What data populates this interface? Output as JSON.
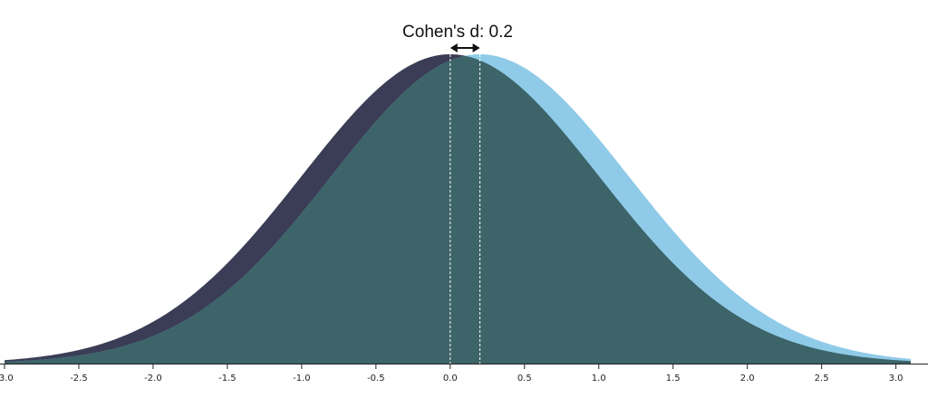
{
  "chart_data": {
    "type": "area",
    "title": "Cohen's d: 0.2",
    "effect_size": 0.2,
    "xlabel": "",
    "ylabel": "",
    "xlim": [
      -3.0,
      3.1
    ],
    "x_ticks": [
      -3.0,
      -2.5,
      -2.0,
      -1.5,
      -1.0,
      -0.5,
      0.0,
      0.5,
      1.0,
      1.5,
      2.0,
      2.5,
      3.0
    ],
    "x_tick_labels": [
      "-3.0",
      "-2.5",
      "-2.0",
      "-1.5",
      "-1.0",
      "-0.5",
      "0.0",
      "0.5",
      "1.0",
      "1.5",
      "2.0",
      "2.5",
      "3.0"
    ],
    "grid": false,
    "series": [
      {
        "mean": 0.0,
        "sd": 1.0,
        "color": "#3a3d55"
      },
      {
        "mean": 0.2,
        "sd": 1.0,
        "color": "#8fcbe8"
      }
    ],
    "overlap_color": "#3c6469",
    "mean_line_color": "#ffffff",
    "arrow_color": "#111111"
  }
}
